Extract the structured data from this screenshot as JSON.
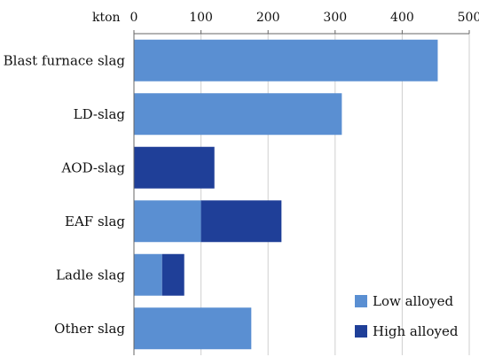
{
  "chart_data": {
    "type": "bar",
    "orientation": "horizontal",
    "stacked": true,
    "unit_label": "kton",
    "xlim": [
      0,
      500
    ],
    "ticks": [
      "0",
      "100",
      "200",
      "300",
      "400",
      "500"
    ],
    "categories": [
      "Blast furnace slag",
      "LD-slag",
      "AOD-slag",
      "EAF slag",
      "Ladle slag",
      "Other slag"
    ],
    "series": [
      {
        "name": "Low alloyed",
        "color": "#5a8fd2",
        "values": [
          453,
          310,
          0,
          100,
          42,
          175
        ]
      },
      {
        "name": "High alloyed",
        "color": "#1f3f98",
        "values": [
          0,
          0,
          120,
          120,
          33,
          0
        ]
      }
    ],
    "grid": true,
    "legend_position": "bottom-right"
  }
}
